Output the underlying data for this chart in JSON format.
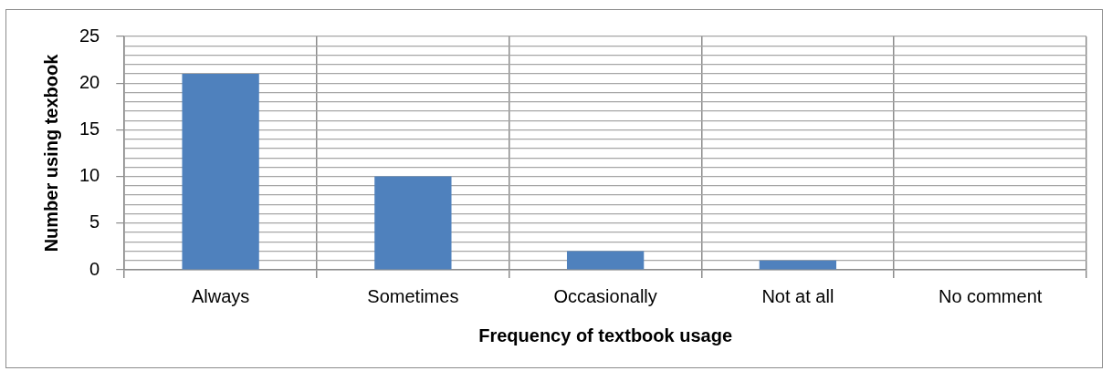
{
  "chart_data": {
    "type": "bar",
    "xlabel": "Frequency of textbook usage",
    "ylabel": "Number using texbook",
    "categories": [
      "Always",
      "Sometimes",
      "Occasionally",
      "Not at all",
      "No comment"
    ],
    "values": [
      21,
      10,
      2,
      1,
      0
    ],
    "color": "#4f81bd",
    "ylim": [
      0,
      25
    ],
    "yticks": [
      0,
      {
        "value": 1,
        "label": null
      },
      {
        "value": 2,
        "label": null
      },
      {
        "value": 3,
        "label": null
      },
      {
        "value": 4,
        "label": null
      },
      5,
      {
        "value": 6,
        "label": null
      },
      {
        "value": 7,
        "label": null
      },
      {
        "value": 8,
        "label": null
      },
      {
        "value": 9,
        "label": null
      },
      10,
      {
        "value": 11,
        "label": null
      },
      {
        "value": 12,
        "label": null
      },
      {
        "value": 13,
        "label": null
      },
      {
        "value": 14,
        "label": null
      },
      15,
      {
        "value": 16,
        "label": null
      },
      {
        "value": 17,
        "label": null
      },
      {
        "value": 18,
        "label": null
      },
      {
        "value": 19,
        "label": null
      },
      20,
      {
        "value": 21,
        "label": null
      },
      {
        "value": 22,
        "label": null
      },
      {
        "value": 23,
        "label": null
      },
      {
        "value": 24,
        "label": null
      },
      25
    ],
    "grid": true
  }
}
